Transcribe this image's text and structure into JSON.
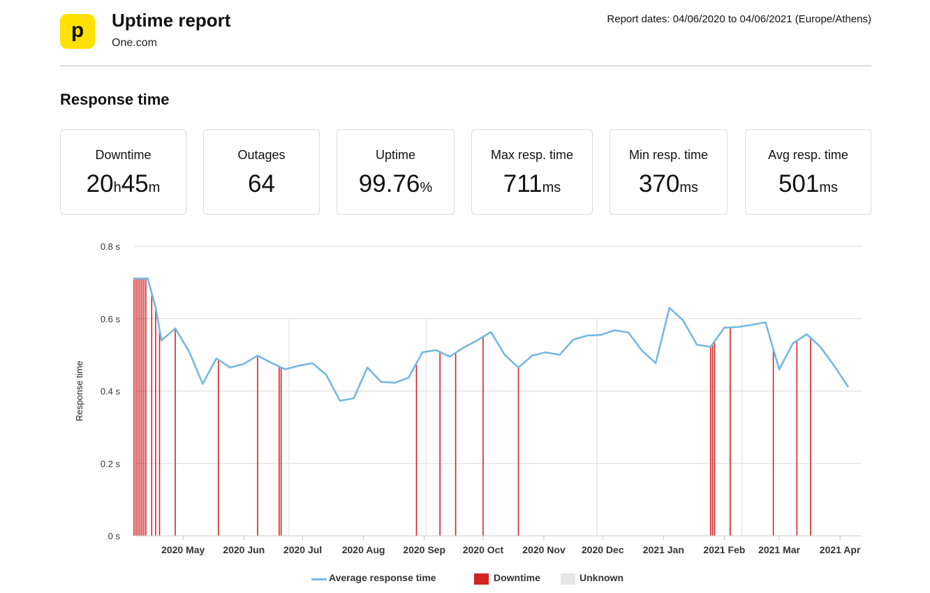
{
  "header": {
    "logo_letter": "p",
    "title": "Uptime report",
    "subtitle": "One.com",
    "report_dates": "Report dates: 04/06/2020 to 04/06/2021 (Europe/Athens)"
  },
  "section_title": "Response time",
  "stats": [
    {
      "label": "Downtime",
      "value_parts": [
        {
          "t": "20",
          "unit": false
        },
        {
          "t": "h",
          "unit": true
        },
        {
          "t": "45",
          "unit": false
        },
        {
          "t": "m",
          "unit": true
        }
      ]
    },
    {
      "label": "Outages",
      "value_parts": [
        {
          "t": "64",
          "unit": false
        }
      ]
    },
    {
      "label": "Uptime",
      "value_parts": [
        {
          "t": "99.76",
          "unit": false
        },
        {
          "t": "%",
          "unit": true
        }
      ]
    },
    {
      "label": "Max resp. time",
      "value_parts": [
        {
          "t": "711",
          "unit": false
        },
        {
          "t": "ms",
          "unit": true
        }
      ]
    },
    {
      "label": "Min resp. time",
      "value_parts": [
        {
          "t": "370",
          "unit": false
        },
        {
          "t": "ms",
          "unit": true
        }
      ]
    },
    {
      "label": "Avg resp. time",
      "value_parts": [
        {
          "t": "501",
          "unit": false
        },
        {
          "t": "ms",
          "unit": true
        }
      ]
    }
  ],
  "colors": {
    "line": "#74b8e3",
    "downtime": "#d32222",
    "unknown": "#e6e6e6",
    "grid": "#d9d9d9",
    "logo": "#ffe100"
  },
  "chart_data": {
    "type": "line",
    "ylabel": "Response time",
    "ylim": [
      0,
      0.8
    ],
    "yticks": [
      0,
      0.2,
      0.4,
      0.6,
      0.8
    ],
    "ytick_labels": [
      "0 s",
      "0.2 s",
      "0.4 s",
      "0.6 s",
      "0.8 s"
    ],
    "xlim": [
      "2020-04-06",
      "2021-04-12"
    ],
    "xtick_dates": [
      "2020-05-01",
      "2020-06-01",
      "2020-07-01",
      "2020-08-01",
      "2020-09-01",
      "2020-10-01",
      "2020-11-01",
      "2020-12-01",
      "2021-01-01",
      "2021-02-01",
      "2021-03-01",
      "2021-04-01"
    ],
    "xtick_labels": [
      "2020 May",
      "2020 Jun",
      "2020 Jul",
      "2020 Aug",
      "2020 Sep",
      "2020 Oct",
      "2020 Nov",
      "2020 Dec",
      "2021 Jan",
      "2021 Feb",
      "2021 Mar",
      "2021 Apr"
    ],
    "grid": true,
    "legend_position": "bottom",
    "legend": [
      "Average response time",
      "Downtime",
      "Unknown"
    ],
    "series": [
      {
        "name": "Average response time",
        "points": [
          [
            "2020-04-06",
            0.711
          ],
          [
            "2020-04-13",
            0.711
          ],
          [
            "2020-04-17",
            0.63
          ],
          [
            "2020-04-20",
            0.54
          ],
          [
            "2020-04-27",
            0.573
          ],
          [
            "2020-05-04",
            0.51
          ],
          [
            "2020-05-11",
            0.42
          ],
          [
            "2020-05-18",
            0.49
          ],
          [
            "2020-05-25",
            0.465
          ],
          [
            "2020-06-01",
            0.475
          ],
          [
            "2020-06-08",
            0.498
          ],
          [
            "2020-06-15",
            0.478
          ],
          [
            "2020-06-22",
            0.46
          ],
          [
            "2020-06-29",
            0.47
          ],
          [
            "2020-07-06",
            0.477
          ],
          [
            "2020-07-13",
            0.445
          ],
          [
            "2020-07-20",
            0.373
          ],
          [
            "2020-07-27",
            0.38
          ],
          [
            "2020-08-03",
            0.465
          ],
          [
            "2020-08-10",
            0.425
          ],
          [
            "2020-08-17",
            0.423
          ],
          [
            "2020-08-24",
            0.437
          ],
          [
            "2020-08-31",
            0.507
          ],
          [
            "2020-09-07",
            0.513
          ],
          [
            "2020-09-14",
            0.495
          ],
          [
            "2020-09-21",
            0.52
          ],
          [
            "2020-09-28",
            0.54
          ],
          [
            "2020-10-05",
            0.563
          ],
          [
            "2020-10-12",
            0.5
          ],
          [
            "2020-10-19",
            0.465
          ],
          [
            "2020-10-26",
            0.498
          ],
          [
            "2020-11-02",
            0.507
          ],
          [
            "2020-11-09",
            0.5
          ],
          [
            "2020-11-16",
            0.542
          ],
          [
            "2020-11-23",
            0.553
          ],
          [
            "2020-11-30",
            0.555
          ],
          [
            "2020-12-07",
            0.568
          ],
          [
            "2020-12-14",
            0.562
          ],
          [
            "2020-12-21",
            0.512
          ],
          [
            "2020-12-28",
            0.477
          ],
          [
            "2021-01-04",
            0.63
          ],
          [
            "2021-01-11",
            0.595
          ],
          [
            "2021-01-18",
            0.528
          ],
          [
            "2021-01-25",
            0.522
          ],
          [
            "2021-02-01",
            0.575
          ],
          [
            "2021-02-08",
            0.577
          ],
          [
            "2021-02-15",
            0.583
          ],
          [
            "2021-02-22",
            0.59
          ],
          [
            "2021-03-01",
            0.46
          ],
          [
            "2021-03-08",
            0.532
          ],
          [
            "2021-03-15",
            0.557
          ],
          [
            "2021-03-22",
            0.522
          ],
          [
            "2021-03-29",
            0.47
          ],
          [
            "2021-04-05",
            0.413
          ]
        ]
      }
    ],
    "downtime_dates": [
      "2020-04-06",
      "2020-04-07",
      "2020-04-08",
      "2020-04-09",
      "2020-04-10",
      "2020-04-11",
      "2020-04-12",
      "2020-04-15",
      "2020-04-17",
      "2020-04-19",
      "2020-04-27",
      "2020-05-19",
      "2020-06-08",
      "2020-06-19",
      "2020-06-20",
      "2020-08-28",
      "2020-09-09",
      "2020-09-17",
      "2020-10-01",
      "2020-10-19",
      "2021-01-25",
      "2021-01-26",
      "2021-01-27",
      "2021-02-04",
      "2021-02-26",
      "2021-03-10",
      "2021-03-17"
    ],
    "unknown_dates": [
      "2020-06-24",
      "2020-09-02",
      "2020-11-28",
      "2021-02-10"
    ]
  }
}
